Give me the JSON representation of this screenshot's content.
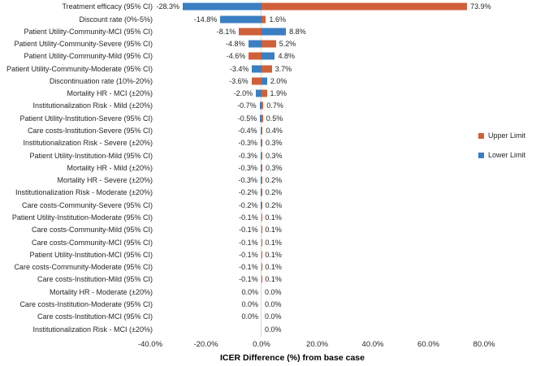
{
  "chart_data": {
    "type": "bar",
    "variant": "tornado",
    "title": "",
    "xlabel": "ICER Difference (%) from base case",
    "xlim": [
      -40,
      80
    ],
    "grid": "zero-line-only",
    "x_ticks": [
      {
        "value": -40,
        "label": "-40.0%"
      },
      {
        "value": -20,
        "label": "-20.0%"
      },
      {
        "value": 0,
        "label": "0.0%"
      },
      {
        "value": 20,
        "label": "20.0%"
      },
      {
        "value": 40,
        "label": "40.0%"
      },
      {
        "value": 60,
        "label": "60.0%"
      },
      {
        "value": 80,
        "label": "80.0%"
      }
    ],
    "legend": {
      "position": "right",
      "items": [
        {
          "id": "upper",
          "label": "Upper Limit"
        },
        {
          "id": "lower",
          "label": "Lower Limit"
        }
      ]
    },
    "colors": {
      "upper": "#d0603a",
      "lower": "#3b7ec2",
      "zero_line": "#d9d9d9",
      "text": "#262626"
    },
    "rows": [
      {
        "label": "Treatment efficacy (95% CI)",
        "left": {
          "value": -28.3,
          "text": "-28.3%",
          "series": "lower"
        },
        "right": {
          "value": 73.9,
          "text": "73.9%",
          "series": "upper"
        }
      },
      {
        "label": "Discount rate (0%-5%)",
        "left": {
          "value": -14.8,
          "text": "-14.8%",
          "series": "lower"
        },
        "right": {
          "value": 1.6,
          "text": "1.6%",
          "series": "upper"
        }
      },
      {
        "label": "Patient Utility-Community-MCI (95% CI)",
        "left": {
          "value": -8.1,
          "text": "-8.1%",
          "series": "upper"
        },
        "right": {
          "value": 8.8,
          "text": "8.8%",
          "series": "lower"
        }
      },
      {
        "label": "Patient Utility-Community-Severe (95% CI)",
        "left": {
          "value": -4.8,
          "text": "-4.8%",
          "series": "lower"
        },
        "right": {
          "value": 5.2,
          "text": "5.2%",
          "series": "upper"
        }
      },
      {
        "label": "Patient Utility-Community-Mild (95% CI)",
        "left": {
          "value": -4.6,
          "text": "-4.6%",
          "series": "upper"
        },
        "right": {
          "value": 4.8,
          "text": "4.8%",
          "series": "lower"
        }
      },
      {
        "label": "Patient Utility-Community-Moderate (95% CI)",
        "left": {
          "value": -3.4,
          "text": "-3.4%",
          "series": "lower"
        },
        "right": {
          "value": 3.7,
          "text": "3.7%",
          "series": "upper"
        }
      },
      {
        "label": "Discontinuation rate (10%-20%)",
        "left": {
          "value": -3.6,
          "text": "-3.6%",
          "series": "upper"
        },
        "right": {
          "value": 2.0,
          "text": "2.0%",
          "series": "lower"
        }
      },
      {
        "label": "Mortality HR - MCI (±20%)",
        "left": {
          "value": -2.0,
          "text": "-2.0%",
          "series": "lower"
        },
        "right": {
          "value": 1.9,
          "text": "1.9%",
          "series": "upper"
        }
      },
      {
        "label": "Institutionalization Risk - Mild (±20%)",
        "left": {
          "value": -0.7,
          "text": "-0.7%",
          "series": "lower"
        },
        "right": {
          "value": 0.7,
          "text": "0.7%",
          "series": "upper"
        }
      },
      {
        "label": "Patient Utility-Institution-Severe (95% CI)",
        "left": {
          "value": -0.5,
          "text": "-0.5%",
          "series": "lower"
        },
        "right": {
          "value": 0.5,
          "text": "0.5%",
          "series": "upper"
        }
      },
      {
        "label": "Care costs-Institution-Severe (95% CI)",
        "left": {
          "value": -0.4,
          "text": "-0.4%",
          "series": "lower"
        },
        "right": {
          "value": 0.4,
          "text": "0.4%",
          "series": "upper"
        }
      },
      {
        "label": "Institutionalization Risk - Severe (±20%)",
        "left": {
          "value": -0.3,
          "text": "-0.3%",
          "series": "lower"
        },
        "right": {
          "value": 0.3,
          "text": "0.3%",
          "series": "upper"
        }
      },
      {
        "label": "Patient Utility-Institution-Mild (95% CI)",
        "left": {
          "value": -0.3,
          "text": "-0.3%",
          "series": "lower"
        },
        "right": {
          "value": 0.3,
          "text": "0.3%",
          "series": "upper"
        }
      },
      {
        "label": "Mortality HR - Mild (±20%)",
        "left": {
          "value": -0.3,
          "text": "-0.3%",
          "series": "lower"
        },
        "right": {
          "value": 0.3,
          "text": "0.3%",
          "series": "upper"
        }
      },
      {
        "label": "Mortality HR - Severe (±20%)",
        "left": {
          "value": -0.3,
          "text": "-0.3%",
          "series": "lower"
        },
        "right": {
          "value": 0.2,
          "text": "0.2%",
          "series": "upper"
        }
      },
      {
        "label": "Institutionalization Risk - Moderate (±20%)",
        "left": {
          "value": -0.2,
          "text": "-0.2%",
          "series": "lower"
        },
        "right": {
          "value": 0.2,
          "text": "0.2%",
          "series": "upper"
        }
      },
      {
        "label": "Care costs-Community-Severe (95% CI)",
        "left": {
          "value": -0.2,
          "text": "-0.2%",
          "series": "lower"
        },
        "right": {
          "value": 0.2,
          "text": "0.2%",
          "series": "upper"
        }
      },
      {
        "label": "Patient Utility-Institution-Moderate (95% CI)",
        "left": {
          "value": -0.1,
          "text": "-0.1%",
          "series": "lower"
        },
        "right": {
          "value": 0.1,
          "text": "0.1%",
          "series": "upper"
        }
      },
      {
        "label": "Care costs-Community-Mild (95% CI)",
        "left": {
          "value": -0.1,
          "text": "-0.1%",
          "series": "lower"
        },
        "right": {
          "value": 0.1,
          "text": "0.1%",
          "series": "upper"
        }
      },
      {
        "label": "Care costs-Community-MCI (95% CI)",
        "left": {
          "value": -0.1,
          "text": "-0.1%",
          "series": "lower"
        },
        "right": {
          "value": 0.1,
          "text": "0.1%",
          "series": "upper"
        }
      },
      {
        "label": "Patient Utility-Institution-MCI (95% CI)",
        "left": {
          "value": -0.1,
          "text": "-0.1%",
          "series": "lower"
        },
        "right": {
          "value": 0.1,
          "text": "0.1%",
          "series": "upper"
        }
      },
      {
        "label": "Care costs-Community-Moderate (95% CI)",
        "left": {
          "value": -0.1,
          "text": "-0.1%",
          "series": "lower"
        },
        "right": {
          "value": 0.1,
          "text": "0.1%",
          "series": "upper"
        }
      },
      {
        "label": "Care costs-Institution-Mild (95% CI)",
        "left": {
          "value": -0.1,
          "text": "-0.1%",
          "series": "lower"
        },
        "right": {
          "value": 0.1,
          "text": "0.1%",
          "series": "upper"
        }
      },
      {
        "label": "Mortality HR - Moderate (±20%)",
        "left": {
          "value": 0.0,
          "text": "0.0%",
          "series": "lower"
        },
        "right": {
          "value": 0.0,
          "text": "0.0%",
          "series": "upper"
        }
      },
      {
        "label": "Care costs-Institution-Moderate (95% CI)",
        "left": {
          "value": 0.0,
          "text": "0.0%",
          "series": "lower"
        },
        "right": {
          "value": 0.0,
          "text": "0.0%",
          "series": "upper"
        }
      },
      {
        "label": "Care costs-Institution-MCI (95% CI)",
        "left": {
          "value": 0.0,
          "text": "0.0%",
          "series": "lower"
        },
        "right": {
          "value": 0.0,
          "text": "0.0%",
          "series": "upper"
        }
      },
      {
        "label": "Institutionalization Risk - MCI (±20%)",
        "left": null,
        "right": {
          "value": 0.0,
          "text": "0.0%",
          "series": "upper"
        }
      }
    ]
  }
}
